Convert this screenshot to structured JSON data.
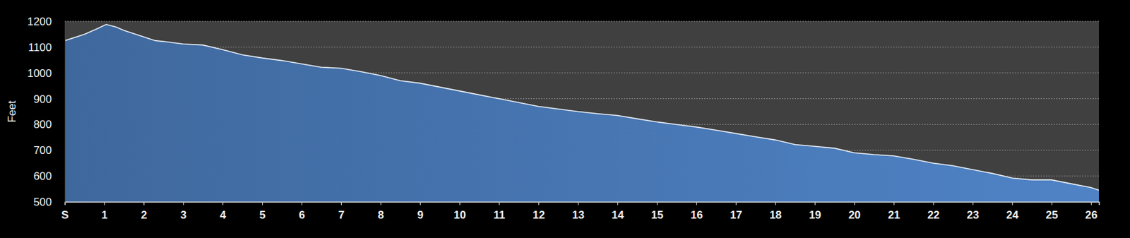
{
  "chart_data": {
    "type": "area",
    "y_label": "Feet",
    "color": "#4a7ab8",
    "grid": true,
    "x": [
      0,
      0.5,
      0.8,
      1.05,
      1.3,
      1.5,
      2,
      2.3,
      2.5,
      3,
      3.5,
      4,
      4.5,
      5,
      5.5,
      6,
      6.5,
      7,
      7.5,
      8,
      8.5,
      9,
      9.5,
      10,
      10.5,
      11,
      11.5,
      12,
      12.5,
      13,
      13.5,
      14,
      14.5,
      15,
      15.5,
      16,
      16.5,
      17,
      17.5,
      18,
      18.5,
      19,
      19.5,
      20,
      20.5,
      21,
      21.5,
      22,
      22.5,
      23,
      23.5,
      24,
      24.5,
      25,
      25.5,
      26,
      26.2
    ],
    "values": [
      1125,
      1150,
      1170,
      1188,
      1178,
      1165,
      1140,
      1125,
      1122,
      1112,
      1108,
      1090,
      1070,
      1058,
      1048,
      1035,
      1022,
      1018,
      1005,
      990,
      970,
      960,
      945,
      930,
      915,
      900,
      885,
      870,
      860,
      850,
      842,
      835,
      822,
      810,
      800,
      790,
      778,
      765,
      752,
      740,
      722,
      715,
      708,
      690,
      683,
      678,
      665,
      650,
      640,
      625,
      610,
      592,
      585,
      585,
      570,
      555,
      545
    ],
    "xlim": [
      0,
      26.2
    ],
    "xticks": [
      {
        "value": 0,
        "label": "S"
      },
      1,
      2,
      3,
      4,
      5,
      6,
      7,
      8,
      9,
      10,
      11,
      12,
      13,
      14,
      15,
      16,
      17,
      18,
      19,
      20,
      21,
      22,
      23,
      24,
      25,
      26
    ],
    "ylim": [
      500,
      1200
    ],
    "yticks": [
      500,
      600,
      700,
      800,
      900,
      1000,
      1100,
      1200
    ]
  }
}
